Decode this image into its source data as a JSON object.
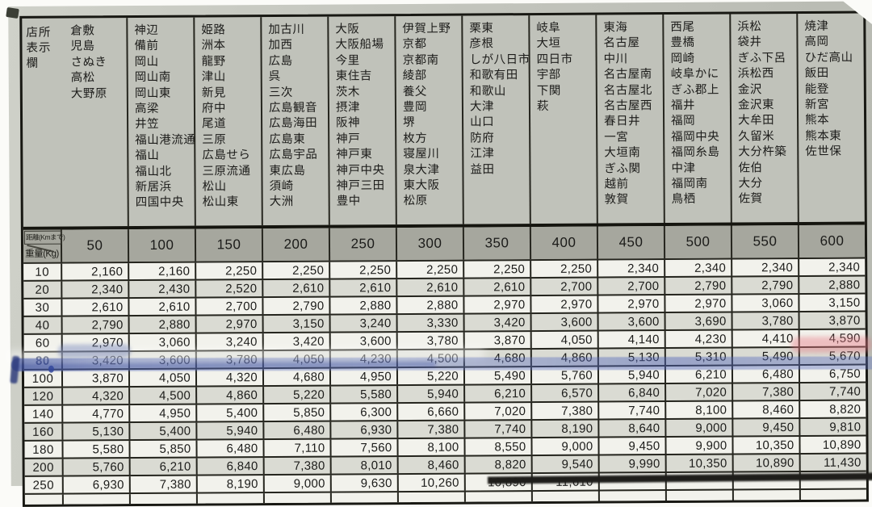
{
  "corner": {
    "line1": "店所",
    "line2": "表示欄"
  },
  "axis": {
    "distance_label": "距離(Kmまで)",
    "weight_label": "重量(Kg)"
  },
  "columns": [
    {
      "distance": "50",
      "stations": [
        "倉敷",
        "児島",
        "さぬき",
        "高松",
        "大野原"
      ]
    },
    {
      "distance": "100",
      "stations": [
        "神辺",
        "備前",
        "岡山",
        "岡山南",
        "岡山東",
        "高梁",
        "井笠",
        "福山港流通",
        "福山",
        "福山北",
        "新居浜",
        "四国中央"
      ]
    },
    {
      "distance": "150",
      "stations": [
        "姫路",
        "洲本",
        "龍野",
        "津山",
        "新見",
        "府中",
        "尾道",
        "三原",
        "広島せら",
        "三原流通",
        "松山",
        "松山東"
      ]
    },
    {
      "distance": "200",
      "stations": [
        "加古川",
        "加西",
        "広島",
        "呉",
        "三次",
        "広島観音",
        "広島海田",
        "広島東",
        "広島宇品",
        "東広島",
        "須崎",
        "大洲"
      ]
    },
    {
      "distance": "250",
      "stations": [
        "大阪",
        "大阪船場",
        "今里",
        "東住吉",
        "茨木",
        "摂津",
        "阪神",
        "神戸",
        "神戸東",
        "神戸中央",
        "神戸三田",
        "豊中"
      ]
    },
    {
      "distance": "300",
      "stations": [
        "伊賀上野",
        "京都",
        "京都南",
        "綾部",
        "養父",
        "豊岡",
        "堺",
        "枚方",
        "寝屋川",
        "泉大津",
        "東大阪",
        "松原"
      ]
    },
    {
      "distance": "350",
      "stations": [
        "栗東",
        "彦根",
        "しが八日市",
        "和歌有田",
        "和歌山",
        "大津",
        "山口",
        "防府",
        "江津",
        "益田"
      ]
    },
    {
      "distance": "400",
      "stations": [
        "岐阜",
        "大垣",
        "四日市",
        "宇部",
        "下関",
        "萩"
      ]
    },
    {
      "distance": "450",
      "stations": [
        "東海",
        "名古屋",
        "中川",
        "名古屋南",
        "名古屋北",
        "名古屋西",
        "春日井",
        "一宮",
        "大垣南",
        "ぎふ関",
        "越前",
        "敦賀"
      ]
    },
    {
      "distance": "500",
      "stations": [
        "西尾",
        "豊橋",
        "岡崎",
        "岐阜かに",
        "ぎふ郡上",
        "福井",
        "福岡",
        "福岡中央",
        "福岡糸島",
        "中津",
        "福岡南",
        "鳥栖"
      ]
    },
    {
      "distance": "550",
      "stations": [
        "浜松",
        "袋井",
        "ぎふ下呂",
        "浜松西",
        "金沢",
        "金沢東",
        "大牟田",
        "久留米",
        "大分杵築",
        "佐伯",
        "大分",
        "佐賀"
      ]
    },
    {
      "distance": "600",
      "stations": [
        "焼津",
        "高岡",
        "ひだ高山",
        "飯田",
        "能登",
        "新宮",
        "熊本",
        "熊本東",
        "佐世保"
      ]
    }
  ],
  "rates": [
    {
      "weight": "10",
      "values": [
        "2,160",
        "2,160",
        "2,250",
        "2,250",
        "2,250",
        "2,250",
        "2,250",
        "2,250",
        "2,340",
        "2,340",
        "2,340",
        "2,340"
      ]
    },
    {
      "weight": "20",
      "values": [
        "2,340",
        "2,430",
        "2,520",
        "2,610",
        "2,610",
        "2,610",
        "2,610",
        "2,700",
        "2,700",
        "2,790",
        "2,790",
        "2,880"
      ]
    },
    {
      "weight": "30",
      "values": [
        "2,610",
        "2,610",
        "2,700",
        "2,790",
        "2,880",
        "2,880",
        "2,970",
        "2,970",
        "2,970",
        "2,970",
        "3,060",
        "3,150"
      ]
    },
    {
      "weight": "40",
      "values": [
        "2,790",
        "2,880",
        "2,970",
        "3,150",
        "3,240",
        "3,330",
        "3,420",
        "3,600",
        "3,600",
        "3,690",
        "3,780",
        "3,870"
      ]
    },
    {
      "weight": "60",
      "values": [
        "2,970",
        "3,060",
        "3,240",
        "3,420",
        "3,600",
        "3,780",
        "3,870",
        "4,050",
        "4,140",
        "4,230",
        "4,410",
        "4,590"
      ]
    },
    {
      "weight": "80",
      "values": [
        "3,420",
        "3,600",
        "3,780",
        "4,050",
        "4,230",
        "4,500",
        "4,680",
        "4,860",
        "5,130",
        "5,310",
        "5,490",
        "5,670"
      ]
    },
    {
      "weight": "100",
      "values": [
        "3,870",
        "4,050",
        "4,320",
        "4,680",
        "4,950",
        "5,220",
        "5,490",
        "5,760",
        "5,940",
        "6,210",
        "6,480",
        "6,750"
      ]
    },
    {
      "weight": "120",
      "values": [
        "4,320",
        "4,500",
        "4,860",
        "5,220",
        "5,580",
        "5,940",
        "6,210",
        "6,570",
        "6,840",
        "7,020",
        "7,380",
        "7,740"
      ]
    },
    {
      "weight": "140",
      "values": [
        "4,770",
        "4,950",
        "5,400",
        "5,850",
        "6,300",
        "6,660",
        "7,020",
        "7,380",
        "7,740",
        "8,100",
        "8,460",
        "8,820"
      ]
    },
    {
      "weight": "160",
      "values": [
        "5,130",
        "5,400",
        "5,940",
        "6,480",
        "6,930",
        "7,380",
        "7,740",
        "8,190",
        "8,640",
        "9,000",
        "9,450",
        "9,810"
      ]
    },
    {
      "weight": "180",
      "values": [
        "5,580",
        "5,850",
        "6,480",
        "7,110",
        "7,560",
        "8,100",
        "8,550",
        "9,000",
        "9,450",
        "9,900",
        "10,350",
        "10,890"
      ]
    },
    {
      "weight": "200",
      "values": [
        "5,760",
        "6,210",
        "6,840",
        "7,380",
        "8,010",
        "8,460",
        "8,820",
        "9,540",
        "9,990",
        "10,350",
        "10,890",
        "11,430"
      ]
    },
    {
      "weight": "250",
      "values": [
        "6,930",
        "7,380",
        "8,190",
        "9,000",
        "9,630",
        "10,260",
        "10,890",
        "11,610",
        "",
        "",
        "",
        ""
      ]
    }
  ],
  "annotations": {
    "highlighted_weight_row": "80",
    "marker_blue": "#4f63b8",
    "smudge_pink": "#e8808d"
  }
}
